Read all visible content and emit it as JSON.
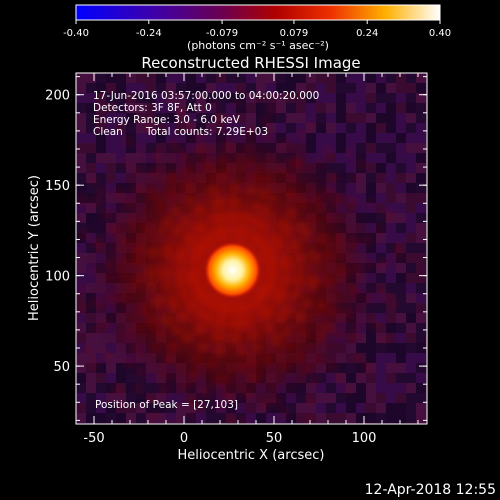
{
  "chart_data": {
    "type": "heatmap",
    "title": "Reconstructed RHESSI Image",
    "xlabel": "Heliocentric X (arcsec)",
    "ylabel": "Heliocentric Y (arcsec)",
    "xlim": [
      -60,
      135
    ],
    "ylim": [
      18,
      212
    ],
    "xticks": [
      -50,
      0,
      50,
      100
    ],
    "yticks": [
      50,
      100,
      150,
      200
    ],
    "colorbar": {
      "min": -0.4,
      "max": 0.4,
      "ticks": [
        "-0.40",
        "-0.24",
        "-0.079",
        "0.079",
        "0.24",
        "0.40"
      ],
      "label": "(photons cm⁻² s⁻¹ asec⁻²)",
      "colors": [
        "#0000ff",
        "#4b0078",
        "#7a0000",
        "#e00000",
        "#ff8c00",
        "#ffffff"
      ]
    },
    "annotations": [
      "17-Jun-2016 03:57:00.000 to 04:00:20.000",
      "Detectors: 3F 8F, Att 0",
      "Energy Range: 3.0 - 6.0 keV",
      "Clean",
      "Total counts: 7.29E+03"
    ],
    "peak_label": "Position of Peak = [27,103]",
    "peak": [
      27,
      103
    ],
    "timestamp": "12-Apr-2018 12:55"
  }
}
